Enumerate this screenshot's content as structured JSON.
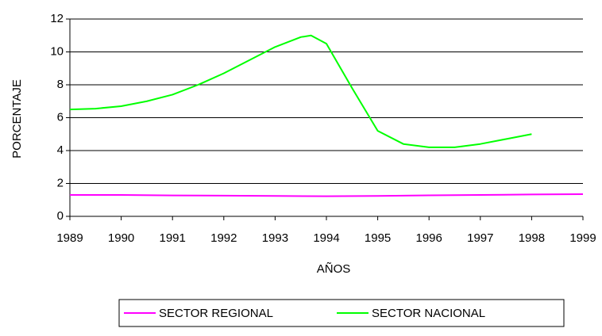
{
  "chart_data": {
    "type": "line",
    "x_label": "AÑOS",
    "y_label": "PORCENTAJE",
    "xlim": [
      1989,
      1999
    ],
    "xticks": [
      1989,
      1990,
      1991,
      1992,
      1993,
      1994,
      1995,
      1996,
      1997,
      1998,
      1999
    ],
    "ylim": [
      0,
      12
    ],
    "yticks": [
      0,
      2,
      4,
      6,
      8,
      10,
      12
    ],
    "grid": true,
    "legend": "bottom",
    "series": [
      {
        "name": "SECTOR REGIONAL",
        "color": "#ff00ff",
        "x": [
          1989,
          1990,
          1991,
          1992,
          1993,
          1994,
          1995,
          1996,
          1997,
          1998,
          1999
        ],
        "values": [
          1.3,
          1.3,
          1.27,
          1.26,
          1.24,
          1.22,
          1.24,
          1.28,
          1.3,
          1.33,
          1.35
        ]
      },
      {
        "name": "SECTOR NACIONAL",
        "color": "#00ff00",
        "x": [
          1989,
          1989.5,
          1990,
          1990.5,
          1991,
          1991.5,
          1992,
          1992.5,
          1993,
          1993.5,
          1993.7,
          1994,
          1994.5,
          1995,
          1995.5,
          1996,
          1996.5,
          1997,
          1997.5,
          1998
        ],
        "values": [
          6.5,
          6.55,
          6.7,
          7.0,
          7.4,
          8.0,
          8.7,
          9.5,
          10.3,
          10.9,
          11.0,
          10.5,
          7.8,
          5.2,
          4.4,
          4.2,
          4.2,
          4.4,
          4.7,
          5.0
        ]
      }
    ]
  }
}
